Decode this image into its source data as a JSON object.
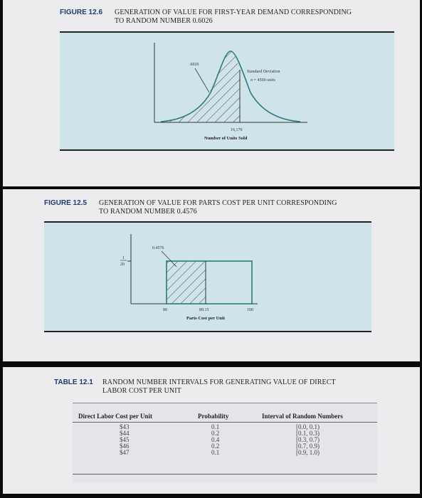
{
  "figure_126": {
    "label": "FIGURE 12.6",
    "title_line1": "GENERATION OF VALUE FOR FIRST-YEAR DEMAND CORRESPONDING",
    "title_line2": "TO RANDOM NUMBER 0.6026",
    "area_label": ".6026",
    "sd_label_line1": "Standard Deviation",
    "sd_label_line2": "σ = 4500 units",
    "x_value": "16,170",
    "x_axis_label": "Number of Units Sold"
  },
  "figure_125": {
    "label": "FIGURE 12.5",
    "title_line1": "GENERATION OF VALUE FOR PARTS COST PER UNIT CORRESPONDING",
    "title_line2": "TO RANDOM NUMBER 0.4576",
    "area_label": "0.4576",
    "y_tick_num": "1",
    "y_tick_den": "20",
    "x_tick_left": "80",
    "x_tick_value": "89.15",
    "x_tick_right": "100",
    "x_axis_label": "Parts Cost per Unit"
  },
  "table_121": {
    "label": "TABLE 12.1",
    "title_line1": "RANDOM NUMBER INTERVALS FOR GENERATING VALUE OF DIRECT",
    "title_line2": "LABOR COST PER UNIT",
    "headers": [
      "Direct Labor Cost per Unit",
      "Probability",
      "Interval of Random Numbers"
    ],
    "rows": [
      [
        "$43",
        "0.1",
        "[0.0, 0.1)"
      ],
      [
        "$44",
        "0.2",
        "[0.1, 0.3)"
      ],
      [
        "$45",
        "0.4",
        "[0.3, 0.7)"
      ],
      [
        "$46",
        "0.2",
        "[0.7, 0.9)"
      ],
      [
        "$47",
        "0.1",
        "[0.9, 1.0)"
      ]
    ]
  },
  "colors": {
    "panel_bg": "#ececef",
    "chart_bg": "#cfe4ea",
    "table_bg": "#e6e8ec",
    "label_blue": "#1f3a70"
  }
}
